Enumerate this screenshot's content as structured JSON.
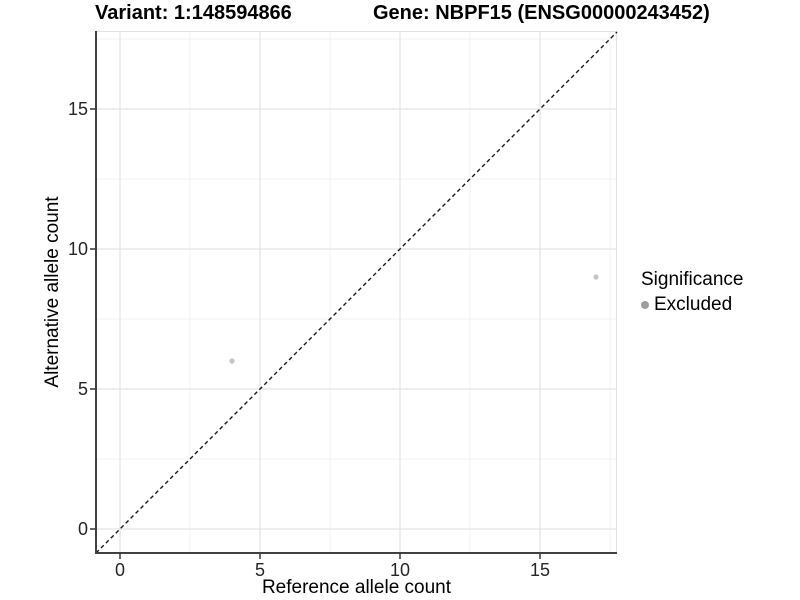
{
  "titles": {
    "variant": "Variant: 1:148594866",
    "gene": "Gene: NBPF15 (ENSG00000243452)"
  },
  "chart_data": {
    "type": "scatter",
    "title_left": "Variant: 1:148594866",
    "title_right": "Gene: NBPF15 (ENSG00000243452)",
    "xlabel": "Reference allele count",
    "ylabel": "Alternative allele count",
    "x_ticks": [
      0,
      5,
      10,
      15
    ],
    "y_ticks": [
      0,
      5,
      10,
      15
    ],
    "x_minor_ticks": [
      2.5,
      7.5,
      12.5,
      17.5
    ],
    "y_minor_ticks": [
      2.5,
      7.5,
      12.5,
      17.5
    ],
    "xlim": [
      -0.86,
      17.75
    ],
    "ylim": [
      -0.86,
      17.79
    ],
    "grid": true,
    "legend_position": "right",
    "reference_line": {
      "type": "identity",
      "slope": 1,
      "intercept": 0,
      "style": "dashed",
      "color": "#1a1a1a"
    },
    "series": [
      {
        "name": "Excluded",
        "point_color": "#c5c5c5",
        "points": [
          {
            "x": 4,
            "y": 6
          },
          {
            "x": 17,
            "y": 9
          }
        ]
      }
    ],
    "legend": {
      "title": "Significance",
      "items": [
        {
          "label": "Excluded",
          "color": "#9d9d9d"
        }
      ]
    }
  },
  "style_colors": {
    "major_grid": "#e3e3e3",
    "minor_grid": "#f0f0f0",
    "panel_border": "#e2e2e2",
    "axis_line": "#404040",
    "tick_mark": "#333333"
  }
}
